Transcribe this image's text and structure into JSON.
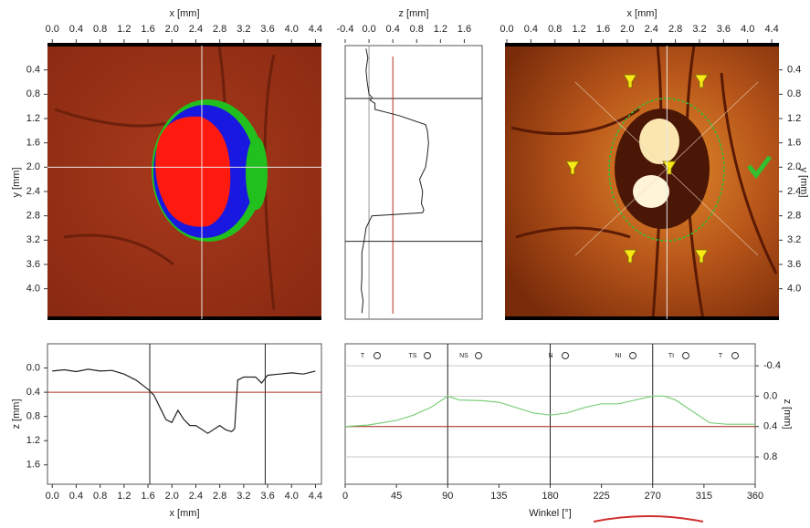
{
  "chart_data": [
    {
      "type": "image",
      "xlabel": "x [mm]",
      "ylabel": "y [mm]",
      "xlim": [
        -0.08,
        4.5
      ],
      "ylim": [
        0,
        4.5
      ],
      "xticks": [
        {
          "value": 0,
          "label": "0.0"
        },
        0.4,
        0.8,
        1.2,
        1.6,
        {
          "value": 2,
          "label": "2.0"
        },
        2.4,
        2.8,
        3.2,
        3.6,
        {
          "value": 4,
          "label": "4.0"
        },
        4.4
      ],
      "yticks": [
        0.4,
        0.8,
        1.2,
        1.6,
        {
          "value": 2,
          "label": "2.0"
        },
        2.4,
        2.8,
        3.2,
        3.6,
        {
          "value": 4,
          "label": "4.0"
        }
      ],
      "vlines": [
        2.5
      ],
      "hlines": [
        2.0
      ],
      "vline_color": "#e8e8e8",
      "hline_color": "#e8e8e8"
    },
    {
      "type": "line",
      "orientation": "vertical",
      "xlabel": "z [mm]",
      "xlim": [
        -0.4,
        1.9
      ],
      "ylim": [
        0,
        4.5
      ],
      "xticks": [
        -0.4,
        {
          "value": 0,
          "label": "0.0"
        },
        0.4,
        0.8,
        1.2,
        1.6
      ],
      "y": [
        0.05,
        0.2,
        0.4,
        0.6,
        0.8,
        0.85,
        0.9,
        0.95,
        1.05,
        1.15,
        1.3,
        1.4,
        1.6,
        1.8,
        2.0,
        2.2,
        2.4,
        2.6,
        2.7,
        2.75,
        2.8,
        3.0,
        3.2,
        3.4,
        3.6,
        3.8,
        4.0,
        4.2,
        4.4
      ],
      "values": [
        -0.05,
        -0.02,
        -0.05,
        -0.03,
        0.0,
        0.05,
        0.02,
        0.1,
        0.1,
        0.5,
        0.95,
        0.98,
        1.0,
        0.98,
        0.95,
        0.85,
        0.9,
        0.88,
        0.92,
        0.9,
        0.05,
        -0.05,
        -0.08,
        -0.12,
        -0.12,
        -0.12,
        -0.13,
        -0.1,
        -0.12
      ],
      "color": "#222222",
      "reference": 0.4,
      "reference_color": "#b03020",
      "vlines": [
        0.0
      ],
      "vline_color": "#999999",
      "hlines": [
        0.87,
        3.22
      ],
      "hline_color": "#222222"
    },
    {
      "type": "image",
      "xlabel": "x [mm]",
      "ylabel": "y [mm]",
      "xlim": [
        -0.03,
        4.52
      ],
      "ylim": [
        0,
        4.5
      ],
      "xticks": [
        {
          "value": 0,
          "label": "0.0"
        },
        0.4,
        0.8,
        1.2,
        1.6,
        {
          "value": 2,
          "label": "2.0"
        },
        2.4,
        2.8,
        3.2,
        3.6,
        {
          "value": 4,
          "label": "4.0"
        },
        4.4
      ],
      "yticks": [
        0.4,
        0.8,
        1.2,
        1.6,
        {
          "value": 2,
          "label": "2.0"
        },
        2.4,
        2.8,
        3.2,
        3.6,
        {
          "value": 4,
          "label": "4.0"
        }
      ],
      "vlines": [
        2.66
      ],
      "vline_color": "#e8e8e8"
    },
    {
      "type": "line",
      "xlabel": "x [mm]",
      "ylabel": "z [mm]",
      "xlim": [
        -0.08,
        4.5
      ],
      "ylim": [
        -0.4,
        1.92
      ],
      "xticks": [
        {
          "value": 0,
          "label": "0.0"
        },
        0.4,
        0.8,
        1.2,
        1.6,
        {
          "value": 2,
          "label": "2.0"
        },
        2.4,
        2.8,
        3.2,
        3.6,
        {
          "value": 4,
          "label": "4.0"
        },
        4.4
      ],
      "yticks": [
        {
          "value": 0,
          "label": "0.0"
        },
        0.4,
        0.8,
        1.2,
        1.6
      ],
      "x": [
        0,
        0.2,
        0.4,
        0.6,
        0.8,
        1.0,
        1.2,
        1.4,
        1.6,
        1.7,
        1.8,
        1.9,
        2.0,
        2.1,
        2.2,
        2.3,
        2.4,
        2.6,
        2.8,
        2.9,
        3.0,
        3.05,
        3.1,
        3.2,
        3.4,
        3.5,
        3.6,
        3.8,
        4.0,
        4.2,
        4.4
      ],
      "values": [
        0.05,
        0.03,
        0.06,
        0.02,
        0.05,
        0.04,
        0.1,
        0.2,
        0.35,
        0.45,
        0.65,
        0.85,
        0.9,
        0.7,
        0.85,
        0.95,
        0.95,
        1.08,
        0.95,
        1.02,
        1.05,
        1.0,
        0.2,
        0.15,
        0.15,
        0.25,
        0.12,
        0.1,
        0.08,
        0.1,
        0.05
      ],
      "color": "#222222",
      "reference": 0.4,
      "reference_color": "#b03020",
      "vlines": [
        1.63,
        3.56
      ],
      "vline_color": "#222222"
    },
    {
      "type": "line",
      "xlabel": "Winkel [°]",
      "ylabel": "z [mm]",
      "xlim": [
        0,
        360
      ],
      "ylim": [
        -0.69,
        1.16
      ],
      "xticks": [
        0,
        45,
        90,
        135,
        180,
        225,
        270,
        315,
        360
      ],
      "yticks": [
        -0.4,
        {
          "value": 0,
          "label": "0.0"
        },
        0.4,
        0.8
      ],
      "grid": true,
      "sectors": [
        "T",
        "TS",
        "NS",
        "N",
        "NI",
        "TI",
        "T"
      ],
      "x": [
        0,
        20,
        45,
        60,
        75,
        85,
        90,
        100,
        120,
        135,
        150,
        165,
        180,
        195,
        210,
        225,
        240,
        255,
        270,
        280,
        290,
        305,
        320,
        335,
        360
      ],
      "values": [
        0.4,
        0.38,
        0.32,
        0.25,
        0.15,
        0.05,
        0.0,
        0.05,
        0.06,
        0.08,
        0.15,
        0.22,
        0.25,
        0.22,
        0.15,
        0.1,
        0.1,
        0.05,
        0.0,
        0.0,
        0.05,
        0.2,
        0.35,
        0.37,
        0.37
      ],
      "color": "#7ccf7c",
      "reference": 0.4,
      "reference_color": "#b03020",
      "vlines": [
        90,
        180,
        270
      ],
      "vline_color": "#222222"
    }
  ]
}
